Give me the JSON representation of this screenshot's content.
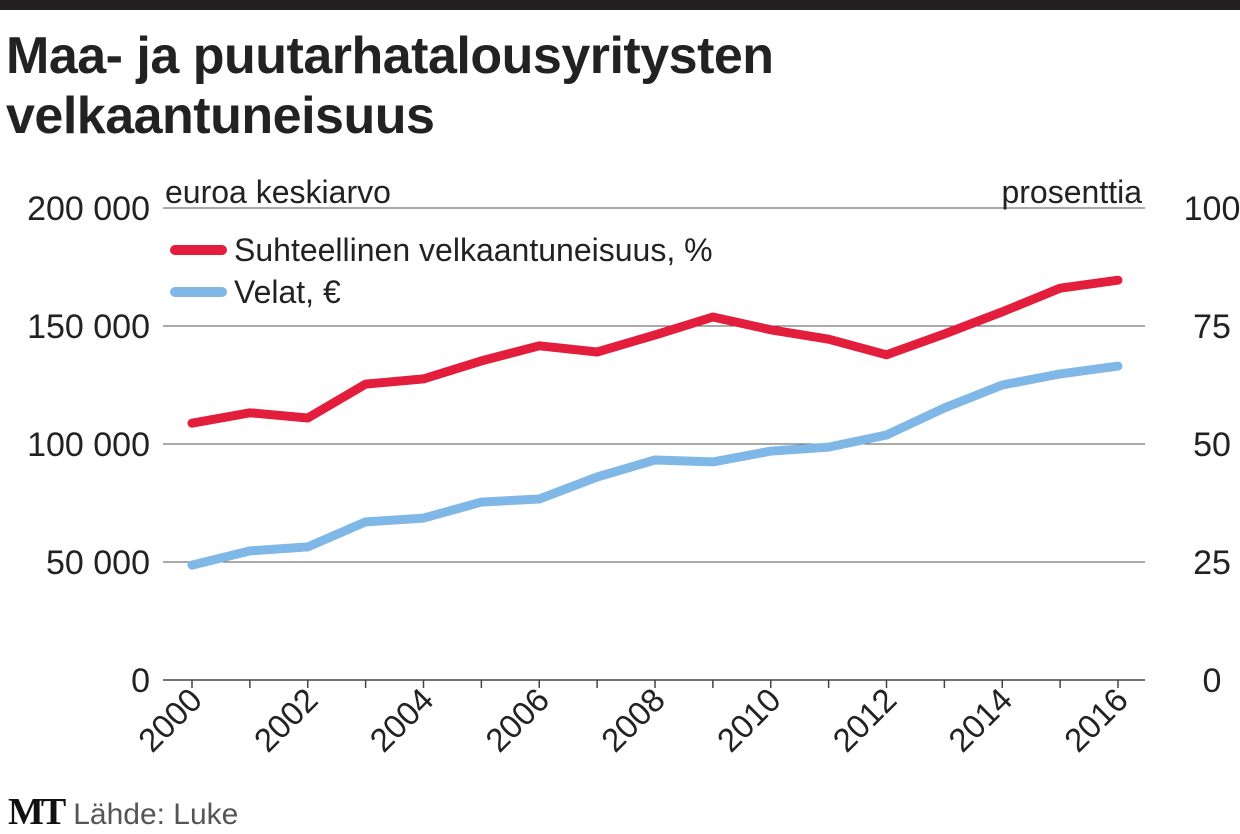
{
  "title_lines": [
    "Maa- ja puutarhatalousyritysten",
    "velkaantuneisuus"
  ],
  "source": "Lähde: Luke",
  "logo": "MT",
  "chart_data": {
    "type": "line",
    "title": "Maa- ja puutarhatalousyritysten velkaantuneisuus",
    "left_axis_label": "euroa keskiarvo",
    "right_axis_label": "prosenttia",
    "x": [
      2000,
      2001,
      2002,
      2003,
      2004,
      2005,
      2006,
      2007,
      2008,
      2009,
      2010,
      2011,
      2012,
      2013,
      2014,
      2015,
      2016
    ],
    "x_tick_labels": [
      "2000",
      "2002",
      "2004",
      "2006",
      "2008",
      "2010",
      "2012",
      "2014",
      "2016"
    ],
    "left_ylim": [
      0,
      200000
    ],
    "left_ticks": [
      "0",
      "50 000",
      "100 000",
      "150 000",
      "200 000"
    ],
    "right_ylim": [
      0,
      100
    ],
    "right_ticks": [
      "0",
      "25",
      "50",
      "75",
      "100"
    ],
    "grid": true,
    "legend_position": "top-left",
    "series": [
      {
        "name": "Suhteellinen velkaantuneisuus, %",
        "axis": "right",
        "color": "#e31e3c",
        "values": [
          54.4,
          56.6,
          55.5,
          62.7,
          63.8,
          67.6,
          70.8,
          69.5,
          73.1,
          76.9,
          74.2,
          72.2,
          68.9,
          73.3,
          78.0,
          83.0,
          84.7
        ]
      },
      {
        "name": "Velat, €",
        "axis": "left",
        "color": "#7fb8e6",
        "values": [
          48700,
          54700,
          56400,
          67000,
          68600,
          75400,
          76700,
          86000,
          93200,
          92400,
          97000,
          98700,
          103800,
          115300,
          125000,
          129700,
          133000
        ]
      }
    ]
  }
}
